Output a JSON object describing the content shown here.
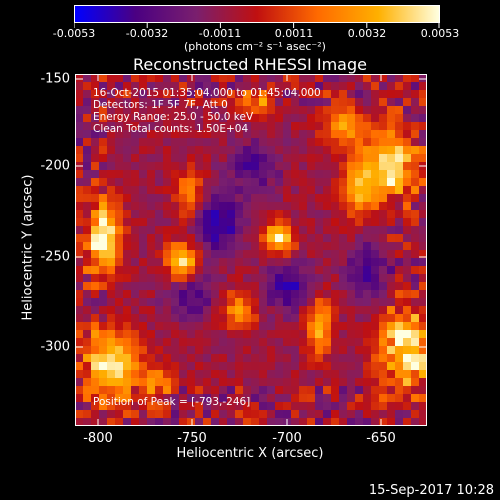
{
  "colorbar": {
    "tick_labels": [
      "-0.0053",
      "-0.0032",
      "-0.0011",
      "0.0011",
      "0.0032",
      "0.0053"
    ],
    "units": "(photons cm⁻² s⁻¹ asec⁻²)"
  },
  "title": "Reconstructed RHESSI Image",
  "info": {
    "time_range": "16-Oct-2015 01:35:04.000 to 01:45:04.000",
    "detectors": "Detectors: 1F 5F 7F, Att 0",
    "energy": "Energy Range: 25.0 - 50.0 keV",
    "clean": "Clean    Total counts: 1.50E+04",
    "peak": "Position of Peak = [-793,-246]"
  },
  "axes": {
    "xlabel": "Heliocentric X (arcsec)",
    "ylabel": "Heliocentric Y (arcsec)",
    "xticks": [
      "-800",
      "-750",
      "-700",
      "-650"
    ],
    "yticks": [
      "-150",
      "-200",
      "-250",
      "-300"
    ]
  },
  "timestamp": "15-Sep-2017 10:28",
  "colors": {
    "colormap": [
      "#0000ff",
      "#4b0082",
      "#7a1f6e",
      "#c01010",
      "#ff6a00",
      "#ffb000",
      "#ffffe0"
    ]
  }
}
